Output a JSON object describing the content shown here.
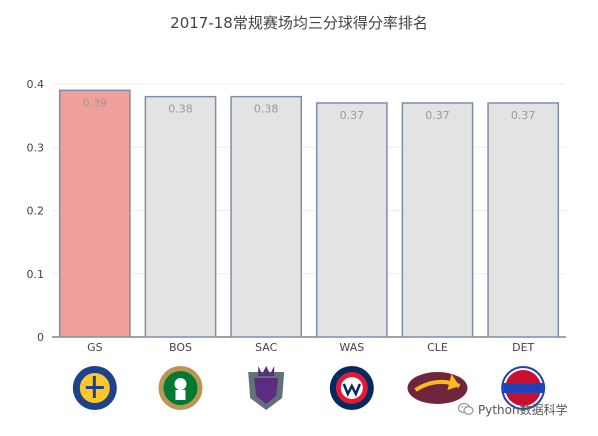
{
  "chart_data": {
    "type": "bar",
    "title": "2017-18常规赛场均三分球得分率排名",
    "categories": [
      "GS",
      "BOS",
      "SAC",
      "WAS",
      "CLE",
      "DET"
    ],
    "values": [
      0.39,
      0.38,
      0.38,
      0.37,
      0.37,
      0.37
    ],
    "data_labels": [
      "0.39",
      "0.38",
      "0.38",
      "0.37",
      "0.37",
      "0.37"
    ],
    "ylim": [
      0,
      0.4
    ],
    "yticks": [
      "0",
      "0.1",
      "0.2",
      "0.3",
      "0.4"
    ],
    "ytick_values": [
      0,
      0.1,
      0.2,
      0.3,
      0.4
    ],
    "grid": true,
    "colors": {
      "highlight_fill": "#f0a09a",
      "bar_fill": "#e3e3e3",
      "bar_stroke": "#7d8fa8",
      "label_color": "#999999",
      "axis_text": "#444444"
    },
    "highlight_index": 0,
    "logos": [
      {
        "icon": "warriors-logo-icon",
        "text": "GOLDEN STATE WARRIORS",
        "colors": [
          "#1d428a",
          "#ffc72c"
        ]
      },
      {
        "icon": "celtics-logo-icon",
        "text": "BOSTON CELTICS",
        "colors": [
          "#007a33",
          "#ba9653"
        ]
      },
      {
        "icon": "kings-logo-icon",
        "text": "KINGS",
        "colors": [
          "#5a2d81",
          "#63727a"
        ]
      },
      {
        "icon": "wizards-logo-icon",
        "text": "WASHINGTON WIZARDS",
        "colors": [
          "#002b5c",
          "#e31837"
        ]
      },
      {
        "icon": "cavaliers-logo-icon",
        "text": "CAVALIERS",
        "colors": [
          "#6f263d",
          "#ffb81c"
        ]
      },
      {
        "icon": "pistons-logo-icon",
        "text": "DETROIT PISTONS",
        "colors": [
          "#c8102e",
          "#1d42ba"
        ]
      }
    ]
  },
  "watermark": {
    "icon": "wechat-icon",
    "text": "Python数据科学"
  }
}
